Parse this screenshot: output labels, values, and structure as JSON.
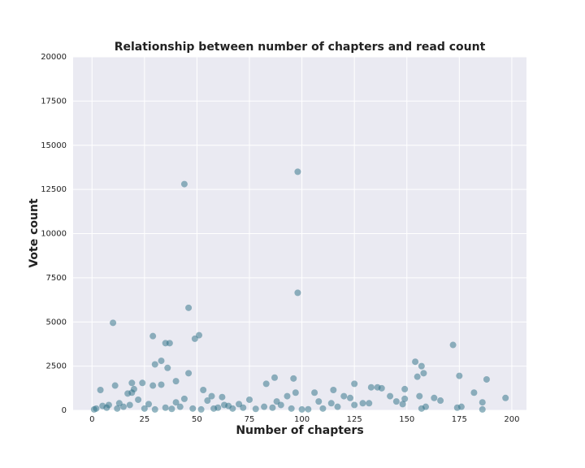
{
  "chart_data": {
    "type": "scatter",
    "title": "Relationship between number of chapters and read count",
    "x_label": "Number of chapters",
    "y_label": "Vote count",
    "color": "#2a6e84",
    "x": [
      44,
      98,
      98,
      46,
      10,
      29,
      51,
      49,
      35,
      37,
      33,
      30,
      36,
      46,
      172,
      154,
      157,
      158,
      155,
      175,
      188,
      87,
      96,
      83,
      125,
      19,
      24,
      11,
      29,
      33,
      20,
      4,
      19,
      17,
      40,
      53,
      57,
      62,
      133,
      136,
      138,
      149,
      115,
      106,
      97,
      182,
      142,
      120,
      123,
      129,
      145,
      114,
      108,
      163,
      166,
      197,
      186,
      176,
      159,
      157,
      186,
      149,
      148,
      93,
      88,
      75,
      70,
      65,
      60,
      55,
      44,
      40,
      27,
      22,
      13,
      8,
      2,
      1,
      5,
      7,
      12,
      15,
      18,
      25,
      30,
      35,
      38,
      42,
      48,
      52,
      58,
      63,
      67,
      72,
      78,
      82,
      86,
      90,
      95,
      100,
      103,
      110,
      117,
      125,
      132,
      156,
      174
    ],
    "y": [
      12800,
      13500,
      6650,
      5800,
      4950,
      4200,
      4250,
      4050,
      3800,
      3800,
      2800,
      2600,
      2400,
      2100,
      3700,
      2750,
      2500,
      2100,
      1900,
      1950,
      1750,
      1850,
      1800,
      1500,
      1500,
      1550,
      1550,
      1400,
      1400,
      1450,
      1200,
      1150,
      1000,
      950,
      1650,
      1150,
      800,
      750,
      1300,
      1300,
      1250,
      1200,
      1150,
      1000,
      1000,
      1000,
      800,
      800,
      700,
      400,
      500,
      400,
      500,
      700,
      550,
      700,
      450,
      200,
      200,
      100,
      50,
      650,
      350,
      800,
      500,
      600,
      350,
      250,
      150,
      550,
      650,
      450,
      350,
      600,
      400,
      300,
      100,
      50,
      250,
      150,
      100,
      200,
      300,
      100,
      50,
      150,
      80,
      200,
      100,
      50,
      100,
      300,
      100,
      150,
      80,
      200,
      150,
      300,
      100,
      50,
      60,
      100,
      200,
      300,
      400,
      800,
      150
    ],
    "xlim": [
      -9,
      207
    ],
    "ylim": [
      0,
      20000
    ],
    "xticks": [
      0,
      25,
      50,
      75,
      100,
      125,
      150,
      175,
      200
    ],
    "yticks": [
      0,
      2500,
      5000,
      7500,
      10000,
      12500,
      15000,
      17500,
      20000
    ],
    "grid": true
  }
}
